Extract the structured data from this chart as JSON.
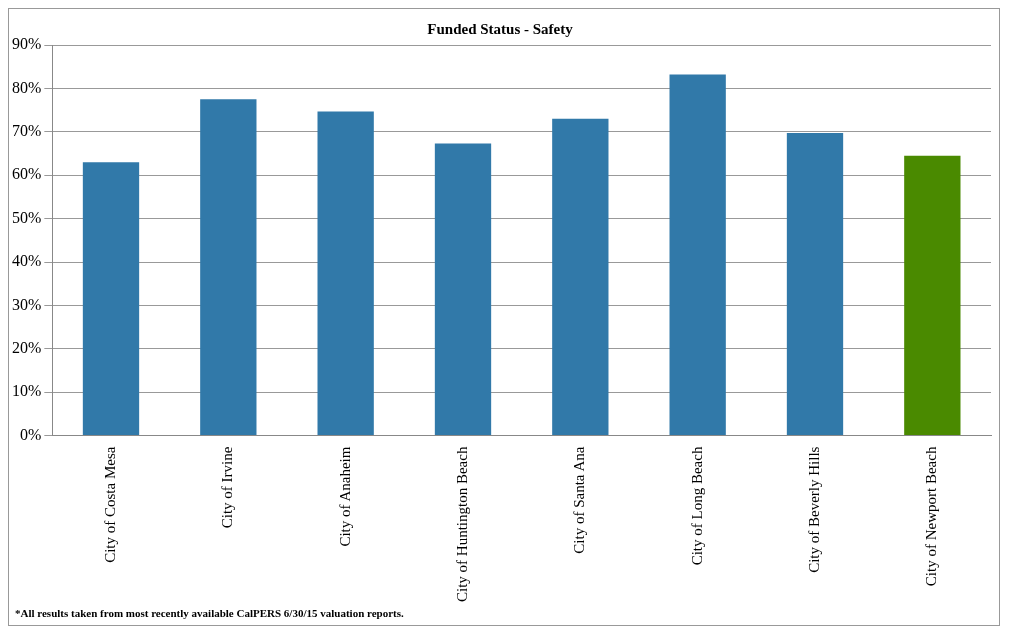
{
  "chart_data": {
    "type": "bar",
    "title": "Funded Status - Safety",
    "categories": [
      "City of Costa Mesa",
      "City of Irvine",
      "City of Anaheim",
      "City of Huntington Beach",
      "City of Santa Ana",
      "City of Long Beach",
      "City of Beverly Hills",
      "City of Newport Beach"
    ],
    "values": [
      63,
      77.5,
      74.7,
      67.3,
      73,
      83.2,
      69.7,
      64.5
    ],
    "colors": [
      "#3179a9",
      "#3179a9",
      "#3179a9",
      "#3179a9",
      "#3179a9",
      "#3179a9",
      "#3179a9",
      "#4a8a00"
    ],
    "ylim": [
      0,
      90
    ],
    "yticks": [
      {
        "value": 0,
        "label": "0%"
      },
      {
        "value": 10,
        "label": "10%"
      },
      {
        "value": 20,
        "label": "20%"
      },
      {
        "value": 30,
        "label": "30%"
      },
      {
        "value": 40,
        "label": "40%"
      },
      {
        "value": 50,
        "label": "50%"
      },
      {
        "value": 60,
        "label": "60%"
      },
      {
        "value": 70,
        "label": "70%"
      },
      {
        "value": 80,
        "label": "80%"
      },
      {
        "value": 90,
        "label": "90%"
      }
    ],
    "grid": "y",
    "legend": false,
    "annotations": [
      "*All results taken from most recently available CalPERS 6/30/15 valuation reports."
    ]
  }
}
